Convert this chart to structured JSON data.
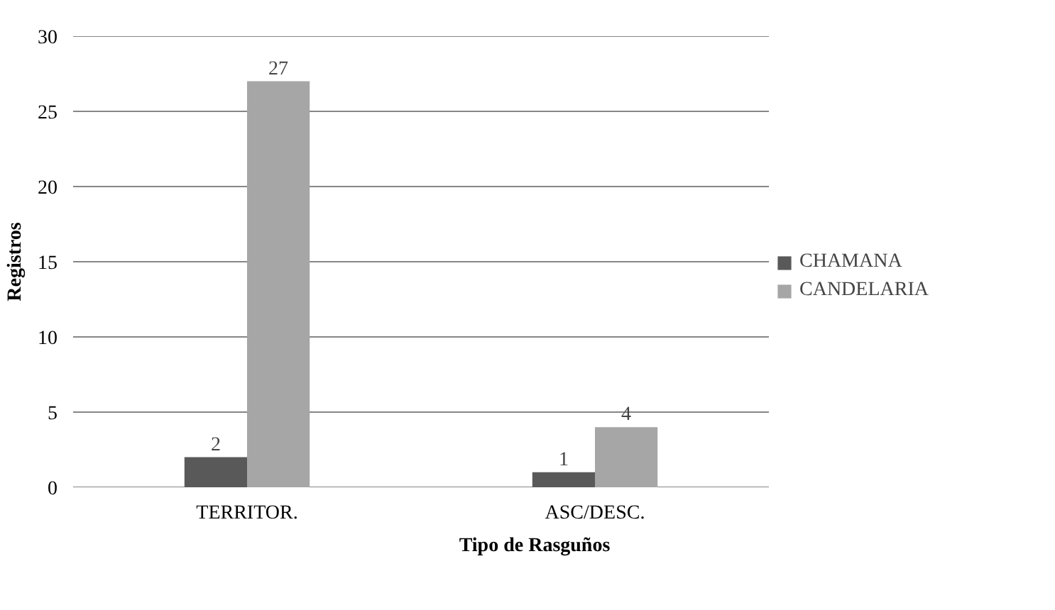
{
  "chart_data": {
    "type": "bar",
    "xlabel": "Tipo de Rasguños",
    "ylabel": "Registros",
    "categories": [
      "TERRITOR.",
      "ASC/DESC."
    ],
    "series": [
      {
        "name": "CHAMANA",
        "color": "#595959",
        "values": [
          2,
          1
        ]
      },
      {
        "name": "CANDELARIA",
        "color": "#a6a6a6",
        "values": [
          27,
          4
        ]
      }
    ],
    "ylim": [
      0,
      30
    ],
    "yticks": [
      0,
      5,
      10,
      15,
      20,
      25,
      30
    ],
    "grid": "y",
    "legend": "right",
    "data_labels": true
  }
}
